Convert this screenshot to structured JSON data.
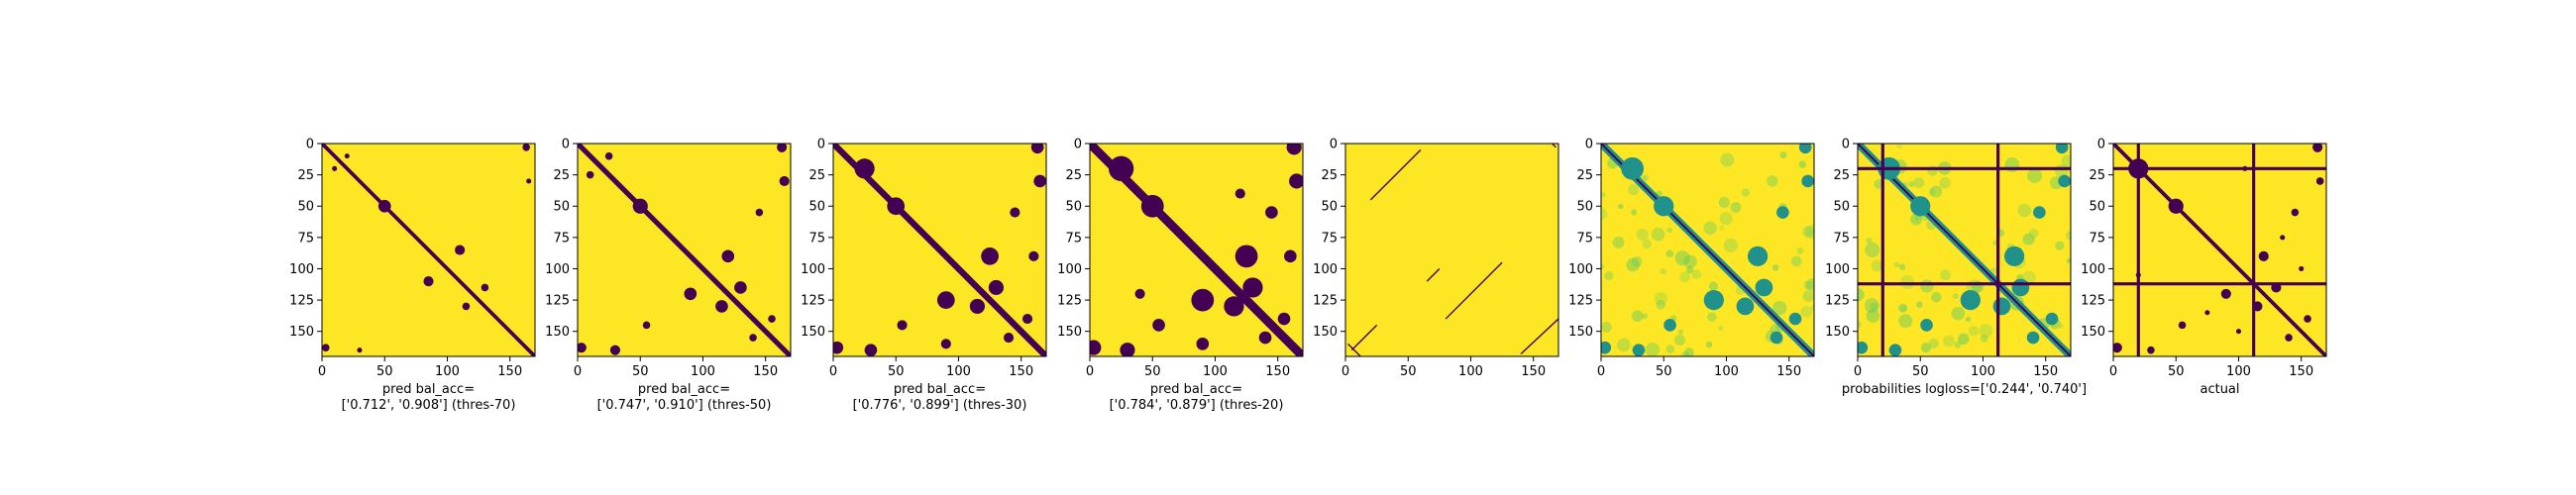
{
  "chart_data": [
    {
      "type": "heatmap",
      "caption_lines": [
        "pred bal_acc=",
        "['0.712', '0.908'] (thres-70)"
      ],
      "xticks": [
        0,
        50,
        100,
        150
      ],
      "yticks": [
        0,
        25,
        50,
        75,
        100,
        125,
        150
      ],
      "xlim": [
        0,
        170
      ],
      "ylim": [
        170,
        0
      ],
      "colormap": "viridis",
      "binary": true,
      "diagonal_width": 3,
      "blobs": [
        [
          50,
          50,
          5
        ],
        [
          85,
          110,
          4
        ],
        [
          110,
          85,
          4
        ],
        [
          130,
          115,
          3
        ],
        [
          115,
          130,
          3
        ],
        [
          30,
          165,
          2
        ],
        [
          165,
          30,
          2
        ],
        [
          20,
          10,
          2
        ],
        [
          10,
          20,
          2
        ],
        [
          3,
          163,
          3
        ],
        [
          163,
          3,
          3
        ]
      ],
      "lines": []
    },
    {
      "type": "heatmap",
      "caption_lines": [
        "pred bal_acc=",
        "['0.747', '0.910'] (thres-50)"
      ],
      "xticks": [
        0,
        50,
        100,
        150
      ],
      "yticks": [
        0,
        25,
        50,
        75,
        100,
        125,
        150
      ],
      "xlim": [
        0,
        170
      ],
      "ylim": [
        170,
        0
      ],
      "colormap": "viridis",
      "binary": true,
      "diagonal_width": 4,
      "blobs": [
        [
          50,
          50,
          6
        ],
        [
          90,
          120,
          5
        ],
        [
          120,
          90,
          5
        ],
        [
          130,
          115,
          5
        ],
        [
          115,
          130,
          5
        ],
        [
          30,
          165,
          4
        ],
        [
          165,
          30,
          4
        ],
        [
          25,
          10,
          3
        ],
        [
          10,
          25,
          3
        ],
        [
          3,
          163,
          4
        ],
        [
          163,
          3,
          4
        ],
        [
          55,
          145,
          3
        ],
        [
          145,
          55,
          3
        ],
        [
          140,
          155,
          3
        ],
        [
          155,
          140,
          3
        ]
      ],
      "lines": []
    },
    {
      "type": "heatmap",
      "caption_lines": [
        "pred bal_acc=",
        "['0.776', '0.899'] (thres-30)"
      ],
      "xticks": [
        0,
        50,
        100,
        150
      ],
      "yticks": [
        0,
        25,
        50,
        75,
        100,
        125,
        150
      ],
      "xlim": [
        0,
        170
      ],
      "ylim": [
        170,
        0
      ],
      "colormap": "viridis",
      "binary": true,
      "diagonal_width": 5,
      "blobs": [
        [
          25,
          20,
          8
        ],
        [
          50,
          50,
          7
        ],
        [
          90,
          125,
          7
        ],
        [
          125,
          90,
          7
        ],
        [
          130,
          115,
          6
        ],
        [
          115,
          130,
          6
        ],
        [
          30,
          165,
          5
        ],
        [
          165,
          30,
          5
        ],
        [
          3,
          163,
          5
        ],
        [
          163,
          3,
          5
        ],
        [
          55,
          145,
          4
        ],
        [
          145,
          55,
          4
        ],
        [
          140,
          155,
          4
        ],
        [
          155,
          140,
          4
        ],
        [
          90,
          160,
          4
        ],
        [
          160,
          90,
          4
        ]
      ],
      "lines": []
    },
    {
      "type": "heatmap",
      "caption_lines": [
        "pred bal_acc=",
        "['0.784', '0.879'] (thres-20)"
      ],
      "xticks": [
        0,
        50,
        100,
        150
      ],
      "yticks": [
        0,
        25,
        50,
        75,
        100,
        125,
        150
      ],
      "xlim": [
        0,
        170
      ],
      "ylim": [
        170,
        0
      ],
      "colormap": "viridis",
      "binary": true,
      "diagonal_width": 7,
      "blobs": [
        [
          25,
          20,
          10
        ],
        [
          50,
          50,
          9
        ],
        [
          90,
          125,
          9
        ],
        [
          125,
          90,
          9
        ],
        [
          130,
          115,
          8
        ],
        [
          115,
          130,
          8
        ],
        [
          30,
          165,
          6
        ],
        [
          165,
          30,
          6
        ],
        [
          3,
          163,
          6
        ],
        [
          163,
          3,
          6
        ],
        [
          55,
          145,
          5
        ],
        [
          145,
          55,
          5
        ],
        [
          140,
          155,
          5
        ],
        [
          155,
          140,
          5
        ],
        [
          90,
          160,
          5
        ],
        [
          160,
          90,
          5
        ],
        [
          40,
          120,
          4
        ],
        [
          120,
          40,
          4
        ]
      ],
      "lines": []
    },
    {
      "type": "heatmap",
      "caption_lines": [],
      "xticks": [
        0,
        50,
        100,
        150
      ],
      "yticks": [
        0,
        25,
        50,
        75,
        100,
        125,
        150
      ],
      "xlim": [
        0,
        170
      ],
      "ylim": [
        170,
        0
      ],
      "colormap": "viridis",
      "binary": true,
      "diagonal_width": 0,
      "blobs": [],
      "lines": [
        [
          5,
          165,
          25,
          145
        ],
        [
          12,
          170,
          2,
          160
        ],
        [
          165,
          0,
          168,
          3
        ],
        [
          20,
          45,
          60,
          5
        ],
        [
          65,
          110,
          75,
          100
        ],
        [
          80,
          140,
          125,
          95
        ],
        [
          140,
          168,
          170,
          140
        ]
      ]
    },
    {
      "type": "heatmap",
      "caption_lines": [],
      "xticks": [
        0,
        50,
        100,
        150
      ],
      "yticks": [
        0,
        25,
        50,
        75,
        100,
        125,
        150
      ],
      "xlim": [
        0,
        170
      ],
      "ylim": [
        170,
        0
      ],
      "colormap": "viridis",
      "binary": false,
      "diagonal_width": 6,
      "blobs": [
        [
          25,
          20,
          9
        ],
        [
          50,
          50,
          8
        ],
        [
          90,
          125,
          8
        ],
        [
          125,
          90,
          8
        ],
        [
          130,
          115,
          7
        ],
        [
          115,
          130,
          7
        ],
        [
          30,
          165,
          5
        ],
        [
          165,
          30,
          5
        ],
        [
          3,
          163,
          5
        ],
        [
          163,
          3,
          5
        ],
        [
          55,
          145,
          5
        ],
        [
          145,
          55,
          5
        ],
        [
          140,
          155,
          5
        ],
        [
          155,
          140,
          5
        ]
      ],
      "lines": []
    },
    {
      "type": "heatmap",
      "caption_lines": [
        "probabilities logloss=['0.244', '0.740']"
      ],
      "xticks": [
        0,
        50,
        100,
        150
      ],
      "yticks": [
        0,
        25,
        50,
        75,
        100,
        125,
        150
      ],
      "xlim": [
        0,
        170
      ],
      "ylim": [
        170,
        0
      ],
      "colormap": "viridis",
      "binary": false,
      "diagonal_width": 6,
      "blobs": [
        [
          25,
          20,
          9
        ],
        [
          50,
          50,
          8
        ],
        [
          90,
          125,
          8
        ],
        [
          125,
          90,
          8
        ],
        [
          130,
          115,
          7
        ],
        [
          115,
          130,
          7
        ],
        [
          30,
          165,
          5
        ],
        [
          165,
          30,
          5
        ],
        [
          3,
          163,
          5
        ],
        [
          163,
          3,
          5
        ],
        [
          55,
          145,
          5
        ],
        [
          145,
          55,
          5
        ],
        [
          140,
          155,
          5
        ],
        [
          155,
          140,
          5
        ]
      ],
      "hlines": [
        20,
        112
      ],
      "vlines": [
        20,
        112
      ],
      "lines": []
    },
    {
      "type": "heatmap",
      "caption_lines": [
        "actual"
      ],
      "xticks": [
        0,
        50,
        100,
        150
      ],
      "yticks": [
        0,
        25,
        50,
        75,
        100,
        125,
        150
      ],
      "xlim": [
        0,
        170
      ],
      "ylim": [
        170,
        0
      ],
      "colormap": "viridis",
      "binary": true,
      "diagonal_width": 3,
      "blobs": [
        [
          20,
          20,
          8
        ],
        [
          50,
          50,
          6
        ],
        [
          90,
          120,
          4
        ],
        [
          120,
          90,
          4
        ],
        [
          130,
          115,
          4
        ],
        [
          115,
          130,
          4
        ],
        [
          30,
          165,
          3
        ],
        [
          165,
          30,
          3
        ],
        [
          3,
          163,
          4
        ],
        [
          163,
          3,
          4
        ],
        [
          55,
          145,
          3
        ],
        [
          145,
          55,
          3
        ],
        [
          140,
          155,
          3
        ],
        [
          155,
          140,
          3
        ],
        [
          75,
          135,
          2
        ],
        [
          135,
          75,
          2
        ],
        [
          100,
          150,
          2
        ],
        [
          150,
          100,
          2
        ],
        [
          105,
          20,
          2
        ],
        [
          20,
          105,
          2
        ]
      ],
      "hlines": [
        20,
        112
      ],
      "vlines": [
        20,
        112
      ],
      "lines": []
    }
  ],
  "colors": {
    "yellow": "#fde725",
    "purple": "#440154",
    "teal": "#21918c",
    "green": "#5ec962"
  }
}
